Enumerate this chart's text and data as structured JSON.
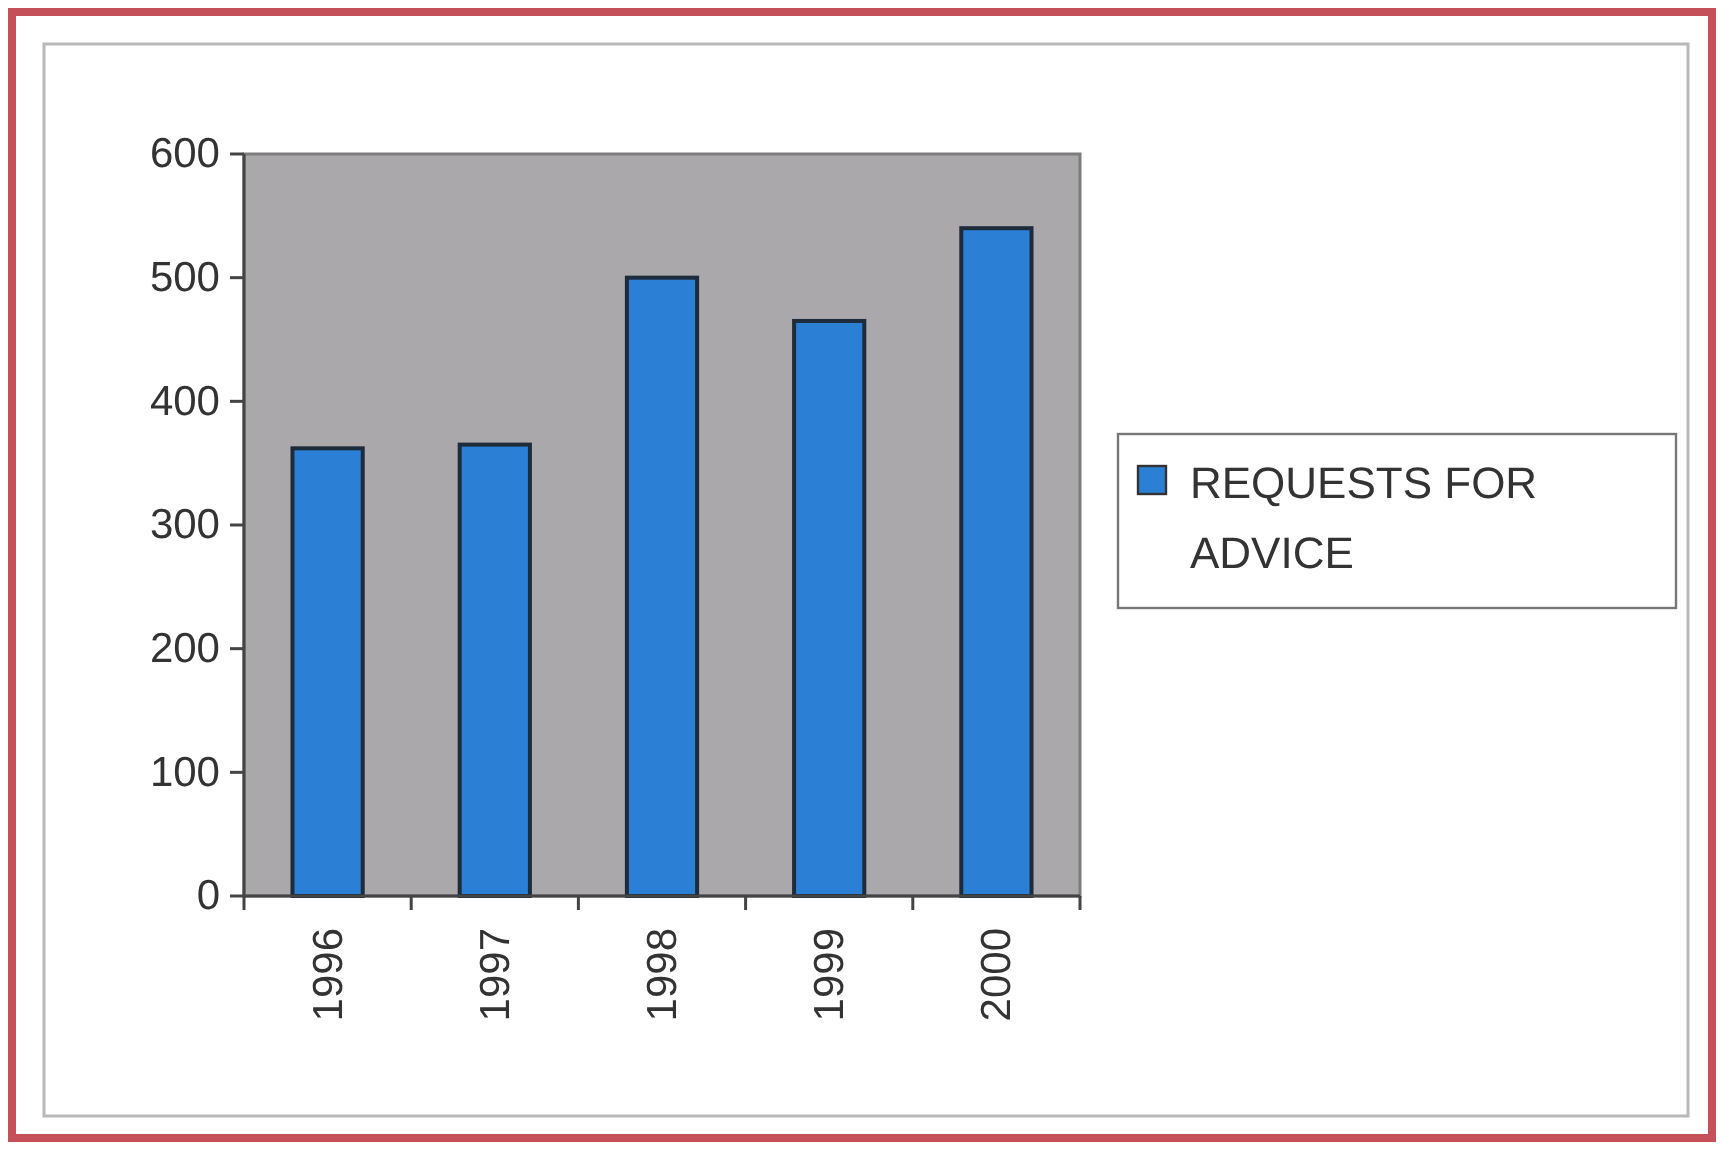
{
  "chart_data": {
    "type": "bar",
    "categories": [
      "1996",
      "1997",
      "1998",
      "1999",
      "2000"
    ],
    "series": [
      {
        "name": "REQUESTS FOR ADVICE",
        "color": "#2b80d6",
        "values": [
          362,
          365,
          500,
          465,
          540
        ]
      }
    ],
    "ylim": [
      0,
      600
    ],
    "yticks": [
      0,
      100,
      200,
      300,
      400,
      500,
      600
    ],
    "legend": "right"
  }
}
